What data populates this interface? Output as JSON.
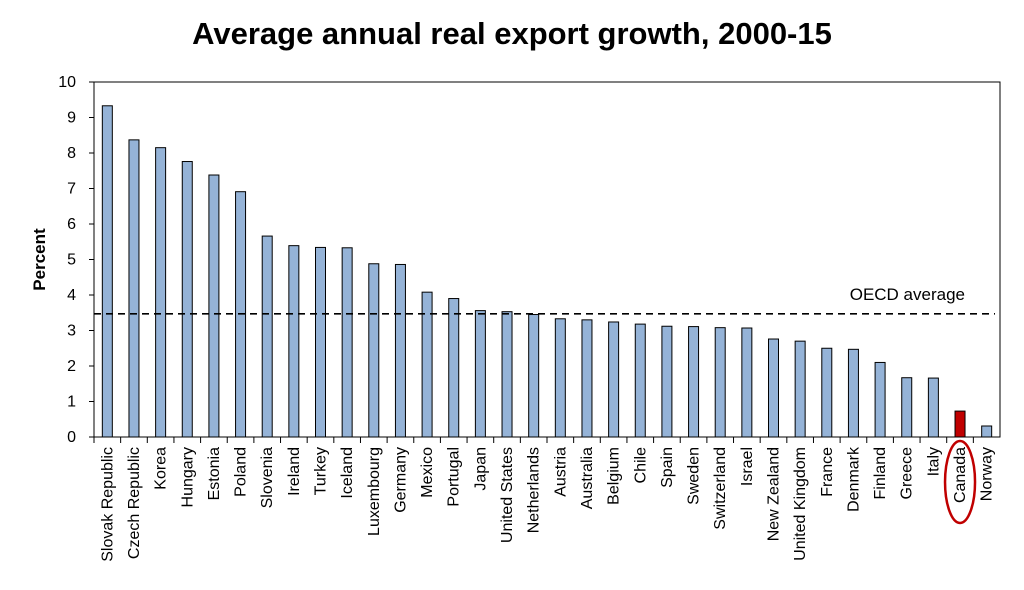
{
  "chart_data": {
    "type": "bar",
    "title": "Average annual real export growth, 2000-15",
    "xlabel": "",
    "ylabel": "Percent",
    "ylim": [
      0,
      10
    ],
    "yticks": [
      "0",
      "1",
      "2",
      "3",
      "4",
      "5",
      "6",
      "7",
      "8",
      "9",
      "10"
    ],
    "grid": false,
    "categories": [
      "Slovak Republic",
      "Czech Republic",
      "Korea",
      "Hungary",
      "Estonia",
      "Poland",
      "Slovenia",
      "Ireland",
      "Turkey",
      "Iceland",
      "Luxembourg",
      "Germany",
      "Mexico",
      "Portugal",
      "Japan",
      "United States",
      "Netherlands",
      "Austria",
      "Australia",
      "Belgium",
      "Chile",
      "Spain",
      "Sweden",
      "Switzerland",
      "Israel",
      "New Zealand",
      "United Kingdom",
      "France",
      "Denmark",
      "Finland",
      "Greece",
      "Italy",
      "Canada",
      "Norway"
    ],
    "values": [
      9.33,
      8.37,
      8.15,
      7.76,
      7.38,
      6.91,
      5.66,
      5.39,
      5.34,
      5.33,
      4.88,
      4.86,
      4.08,
      3.9,
      3.56,
      3.53,
      3.45,
      3.33,
      3.3,
      3.24,
      3.18,
      3.12,
      3.11,
      3.08,
      3.07,
      2.76,
      2.7,
      2.5,
      2.47,
      2.1,
      1.67,
      1.66,
      0.73,
      0.31
    ],
    "highlight": "Canada",
    "reference_line": {
      "label": "OECD average",
      "value": 3.47,
      "style": "dashed"
    },
    "colors": {
      "bar": "#95b3d7",
      "highlight_bar": "#c00000",
      "bar_outline": "#000000",
      "highlight_circle": "#c00000"
    }
  }
}
